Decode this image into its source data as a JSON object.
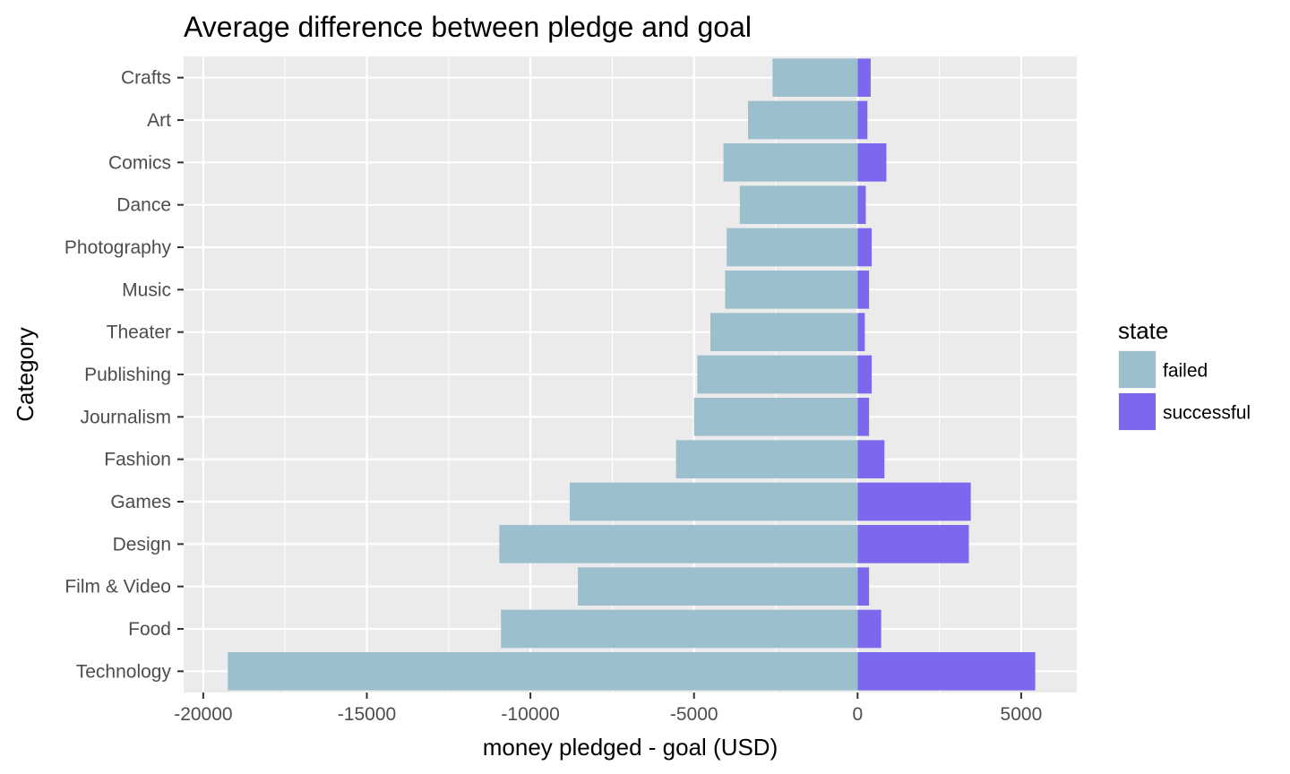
{
  "chart_data": {
    "type": "bar",
    "orientation": "horizontal",
    "stacked": "diverging",
    "title": "Average difference between pledge and goal",
    "xlabel": "money pledged - goal (USD)",
    "ylabel": "Category",
    "xlim": [
      -20600,
      6700
    ],
    "xticks": [
      -20000,
      -15000,
      -10000,
      -5000,
      0,
      5000
    ],
    "xtick_labels": [
      "-20000",
      "-15000",
      "-10000",
      "-5000",
      "0",
      "5000"
    ],
    "grid": true,
    "background": "#ebebeb",
    "categories": [
      "Crafts",
      "Art",
      "Comics",
      "Dance",
      "Photography",
      "Music",
      "Theater",
      "Publishing",
      "Journalism",
      "Fashion",
      "Games",
      "Design",
      "Film & Video",
      "Food",
      "Technology"
    ],
    "series": [
      {
        "name": "failed",
        "color": "#9bbfcd",
        "values": [
          -2600,
          -3350,
          -4100,
          -3600,
          -4000,
          -4050,
          -4500,
          -4900,
          -5000,
          -5550,
          -8800,
          -10950,
          -8550,
          -10900,
          -19250
        ]
      },
      {
        "name": "successful",
        "color": "#7b68ee",
        "values": [
          400,
          300,
          880,
          250,
          430,
          350,
          220,
          430,
          350,
          820,
          3460,
          3400,
          350,
          720,
          5430
        ]
      }
    ],
    "legend": {
      "title": "state",
      "position": "right",
      "entries": [
        "failed",
        "successful"
      ]
    }
  }
}
